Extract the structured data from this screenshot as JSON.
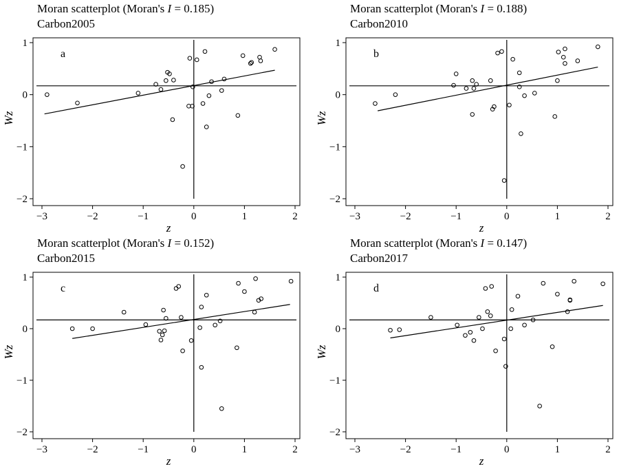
{
  "chart_data": [
    {
      "type": "scatter",
      "panel_label": "a",
      "title_prefix": "Moran scatterplot (Moran's ",
      "title_stat": "I",
      "title_suffix": " = 0.185)",
      "subtitle": "Carbon2005",
      "xlabel": "z",
      "ylabel": "Wz",
      "xlim": [
        -3,
        2
      ],
      "ylim": [
        -2,
        1
      ],
      "xticks": [
        "−3",
        "−2",
        "−1",
        "0",
        "1",
        "2"
      ],
      "yticks": [
        "−2",
        "−1",
        "0",
        "1"
      ],
      "mean_line_y": 0.17,
      "regression": {
        "x": [
          -2.95,
          1.6
        ],
        "y": [
          -0.37,
          0.47
        ]
      },
      "points": [
        [
          -2.9,
          0.0
        ],
        [
          -2.3,
          -0.16
        ],
        [
          -1.1,
          0.03
        ],
        [
          -0.75,
          0.2
        ],
        [
          -0.65,
          0.1
        ],
        [
          -0.55,
          0.27
        ],
        [
          -0.52,
          0.43
        ],
        [
          -0.48,
          0.4
        ],
        [
          -0.4,
          0.28
        ],
        [
          -0.42,
          -0.48
        ],
        [
          -0.1,
          -0.22
        ],
        [
          -0.03,
          -0.22
        ],
        [
          -0.08,
          0.7
        ],
        [
          -0.02,
          0.15
        ],
        [
          0.06,
          0.67
        ],
        [
          -0.22,
          -1.38
        ],
        [
          0.18,
          -0.17
        ],
        [
          0.22,
          0.83
        ],
        [
          0.25,
          -0.62
        ],
        [
          0.3,
          -0.02
        ],
        [
          0.35,
          0.25
        ],
        [
          0.55,
          0.08
        ],
        [
          0.6,
          0.3
        ],
        [
          0.87,
          -0.4
        ],
        [
          0.97,
          0.75
        ],
        [
          1.12,
          0.6
        ],
        [
          1.14,
          0.62
        ],
        [
          1.3,
          0.72
        ],
        [
          1.32,
          0.65
        ],
        [
          1.6,
          0.87
        ]
      ]
    },
    {
      "type": "scatter",
      "panel_label": "b",
      "title_prefix": "Moran scatterplot (Moran's ",
      "title_stat": "I",
      "title_suffix": " = 0.188)",
      "subtitle": "Carbon2010",
      "xlabel": "z",
      "ylabel": "Wz",
      "xlim": [
        -3,
        2
      ],
      "ylim": [
        -2,
        1
      ],
      "xticks": [
        "−3",
        "−2",
        "−1",
        "0",
        "1",
        "2"
      ],
      "yticks": [
        "−2",
        "−1",
        "0",
        "1"
      ],
      "mean_line_y": 0.17,
      "regression": {
        "x": [
          -2.55,
          1.8
        ],
        "y": [
          -0.31,
          0.53
        ]
      },
      "points": [
        [
          -2.6,
          -0.17
        ],
        [
          -2.2,
          0.0
        ],
        [
          -1.05,
          0.18
        ],
        [
          -1.0,
          0.4
        ],
        [
          -0.8,
          0.12
        ],
        [
          -0.68,
          0.27
        ],
        [
          -0.65,
          0.12
        ],
        [
          -0.6,
          0.2
        ],
        [
          -0.68,
          -0.38
        ],
        [
          -0.32,
          0.27
        ],
        [
          -0.28,
          -0.28
        ],
        [
          -0.25,
          -0.23
        ],
        [
          -0.18,
          0.8
        ],
        [
          -0.1,
          0.83
        ],
        [
          -0.05,
          -1.65
        ],
        [
          0.05,
          -0.2
        ],
        [
          0.12,
          0.68
        ],
        [
          0.25,
          0.42
        ],
        [
          0.25,
          0.15
        ],
        [
          0.28,
          -0.75
        ],
        [
          0.35,
          -0.02
        ],
        [
          0.55,
          0.03
        ],
        [
          0.95,
          -0.42
        ],
        [
          1.0,
          0.27
        ],
        [
          1.02,
          0.82
        ],
        [
          1.12,
          0.72
        ],
        [
          1.15,
          0.88
        ],
        [
          1.15,
          0.6
        ],
        [
          1.4,
          0.65
        ],
        [
          1.8,
          0.92
        ]
      ]
    },
    {
      "type": "scatter",
      "panel_label": "c",
      "title_prefix": "Moran scatterplot (Moran's ",
      "title_stat": "I",
      "title_suffix": " = 0.152)",
      "subtitle": "Carbon2015",
      "xlabel": "z",
      "ylabel": "Wz",
      "xlim": [
        -3,
        2
      ],
      "ylim": [
        -2,
        1
      ],
      "xticks": [
        "−3",
        "−2",
        "−1",
        "0",
        "1",
        "2"
      ],
      "yticks": [
        "−2",
        "−1",
        "0",
        "1"
      ],
      "mean_line_y": 0.17,
      "regression": {
        "x": [
          -2.4,
          1.9
        ],
        "y": [
          -0.19,
          0.47
        ]
      },
      "points": [
        [
          -2.4,
          0.0
        ],
        [
          -2.0,
          0.0
        ],
        [
          -1.38,
          0.32
        ],
        [
          -0.95,
          0.08
        ],
        [
          -0.68,
          -0.05
        ],
        [
          -0.65,
          -0.22
        ],
        [
          -0.62,
          -0.12
        ],
        [
          -0.6,
          0.36
        ],
        [
          -0.58,
          -0.04
        ],
        [
          -0.55,
          0.2
        ],
        [
          -0.35,
          0.78
        ],
        [
          -0.3,
          0.82
        ],
        [
          -0.22,
          -0.43
        ],
        [
          -0.25,
          0.22
        ],
        [
          -0.05,
          -0.23
        ],
        [
          0.12,
          0.02
        ],
        [
          0.15,
          0.42
        ],
        [
          0.15,
          -0.75
        ],
        [
          0.25,
          0.65
        ],
        [
          0.42,
          0.07
        ],
        [
          0.52,
          0.15
        ],
        [
          0.55,
          -1.55
        ],
        [
          0.85,
          -0.37
        ],
        [
          0.88,
          0.88
        ],
        [
          1.0,
          0.72
        ],
        [
          1.2,
          0.32
        ],
        [
          1.22,
          0.97
        ],
        [
          1.28,
          0.55
        ],
        [
          1.33,
          0.58
        ],
        [
          1.92,
          0.92
        ]
      ]
    },
    {
      "type": "scatter",
      "panel_label": "d",
      "title_prefix": "Moran scatterplot (Moran's ",
      "title_stat": "I",
      "title_suffix": " = 0.147)",
      "subtitle": "Carbon2017",
      "xlabel": "z",
      "ylabel": "Wz",
      "xlim": [
        -3,
        2
      ],
      "ylim": [
        -2,
        1
      ],
      "xticks": [
        "−3",
        "−2",
        "−1",
        "0",
        "1",
        "2"
      ],
      "yticks": [
        "−2",
        "−1",
        "0",
        "1"
      ],
      "mean_line_y": 0.17,
      "regression": {
        "x": [
          -2.3,
          1.9
        ],
        "y": [
          -0.18,
          0.45
        ]
      },
      "points": [
        [
          -2.3,
          -0.03
        ],
        [
          -2.12,
          -0.02
        ],
        [
          -1.5,
          0.22
        ],
        [
          -0.98,
          0.07
        ],
        [
          -0.82,
          -0.13
        ],
        [
          -0.72,
          -0.07
        ],
        [
          -0.65,
          -0.23
        ],
        [
          -0.55,
          0.22
        ],
        [
          -0.48,
          0.0
        ],
        [
          -0.42,
          0.78
        ],
        [
          -0.38,
          0.33
        ],
        [
          -0.32,
          0.25
        ],
        [
          -0.3,
          0.82
        ],
        [
          -0.22,
          -0.43
        ],
        [
          -0.05,
          -0.2
        ],
        [
          -0.02,
          -0.73
        ],
        [
          0.08,
          0.0
        ],
        [
          0.1,
          0.37
        ],
        [
          0.22,
          0.63
        ],
        [
          0.35,
          0.07
        ],
        [
          0.52,
          0.17
        ],
        [
          0.65,
          -1.5
        ],
        [
          0.72,
          0.88
        ],
        [
          0.9,
          -0.35
        ],
        [
          1.0,
          0.67
        ],
        [
          1.2,
          0.33
        ],
        [
          1.25,
          0.55
        ],
        [
          1.25,
          0.56
        ],
        [
          1.33,
          0.92
        ],
        [
          1.9,
          0.87
        ]
      ]
    }
  ]
}
